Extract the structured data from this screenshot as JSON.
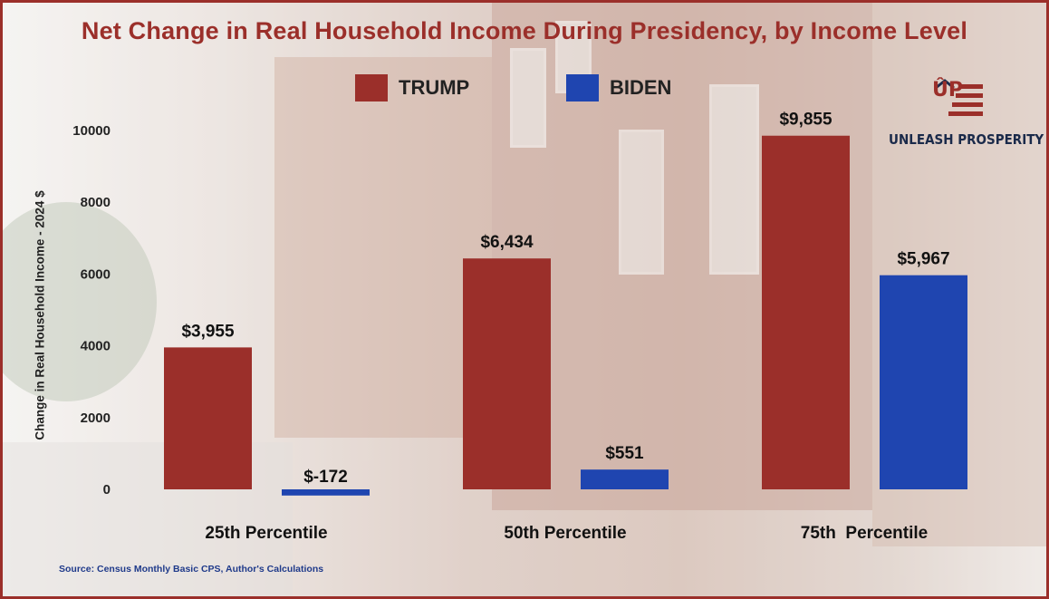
{
  "colors": {
    "trump": "#9b2f2a",
    "biden": "#1f45b0",
    "title": "#9b2f2a",
    "source": "#1f3a8a"
  },
  "logo": {
    "mark": "ÛP",
    "text": "UNLEASH PROSPERITY"
  },
  "source_note": "Source: Census Monthly Basic CPS, Author's Calculations",
  "chart_data": {
    "type": "bar",
    "title": "Net Change in Real Household Income During Presidency, by Income Level",
    "ylabel": "Change in Real Household Income - 2024 $",
    "xlabel": "",
    "ylim": [
      0,
      10000
    ],
    "yticks": [
      0,
      2000,
      4000,
      6000,
      8000,
      10000
    ],
    "grid": false,
    "legend_position": "top",
    "categories": [
      "25th Percentile",
      "50th Percentile",
      "75th  Percentile"
    ],
    "series": [
      {
        "name": "TRUMP",
        "color": "#9b2f2a",
        "values": [
          3955,
          6434,
          9855
        ],
        "labels": [
          "$3,955",
          "$6,434",
          "$9,855"
        ]
      },
      {
        "name": "BIDEN",
        "color": "#1f45b0",
        "values": [
          -172,
          551,
          5967
        ],
        "labels": [
          "$-172",
          "$551",
          "$5,967"
        ]
      }
    ]
  }
}
